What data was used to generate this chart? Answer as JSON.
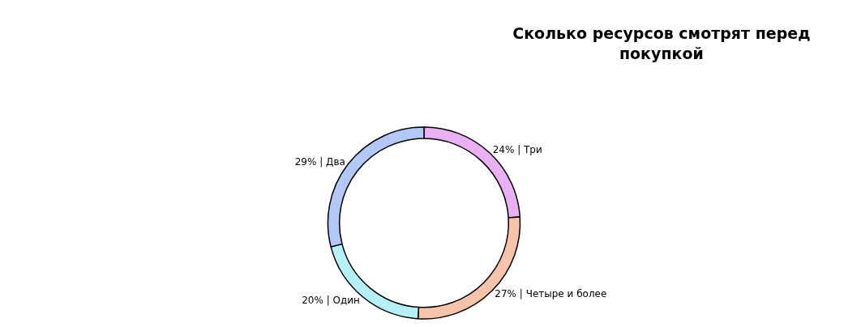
{
  "chart_data": {
    "type": "donut",
    "title": "Сколько ресурсов смотрят перед\nпокупкой",
    "categories": [
      "Три",
      "Четыре и более",
      "Один",
      "Два"
    ],
    "values": [
      24,
      27,
      20,
      29
    ],
    "colors": [
      "#e9b0f4",
      "#f8c3ab",
      "#b5f0f7",
      "#b3c8f6"
    ],
    "value_labels": [
      "24% |",
      "27% |",
      "20% |",
      "29% |"
    ],
    "legend": false
  }
}
